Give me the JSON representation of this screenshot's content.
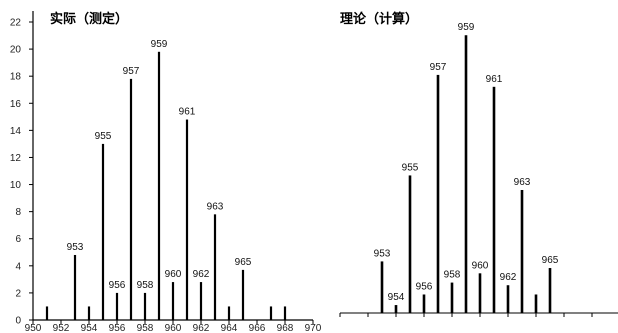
{
  "chart_data": [
    {
      "type": "bar",
      "title": "实际（测定）",
      "xlabel": "",
      "ylabel": "",
      "xlim": [
        950,
        970
      ],
      "ylim": [
        0,
        22
      ],
      "x_ticks": [
        950,
        952,
        954,
        956,
        958,
        960,
        962,
        964,
        966,
        968,
        970
      ],
      "y_ticks": [
        0,
        2,
        4,
        6,
        8,
        10,
        12,
        14,
        16,
        18,
        20,
        22
      ],
      "grid": false,
      "bar_color": "#000000",
      "points": [
        {
          "x": 951,
          "y": 1.0,
          "label": ""
        },
        {
          "x": 953,
          "y": 4.8,
          "label": "953"
        },
        {
          "x": 954,
          "y": 1.0,
          "label": ""
        },
        {
          "x": 955,
          "y": 13.0,
          "label": "955"
        },
        {
          "x": 956,
          "y": 2.0,
          "label": "956"
        },
        {
          "x": 957,
          "y": 17.8,
          "label": "957"
        },
        {
          "x": 958,
          "y": 2.0,
          "label": "958"
        },
        {
          "x": 959,
          "y": 19.8,
          "label": "959"
        },
        {
          "x": 960,
          "y": 2.8,
          "label": "960"
        },
        {
          "x": 961,
          "y": 14.8,
          "label": "961"
        },
        {
          "x": 962,
          "y": 2.8,
          "label": "962"
        },
        {
          "x": 963,
          "y": 7.8,
          "label": "963"
        },
        {
          "x": 964,
          "y": 1.0,
          "label": ""
        },
        {
          "x": 965,
          "y": 3.7,
          "label": "965"
        },
        {
          "x": 967,
          "y": 1.0,
          "label": ""
        },
        {
          "x": 968,
          "y": 1.0,
          "label": ""
        }
      ]
    },
    {
      "type": "bar",
      "title": "理论（计算）",
      "xlabel": "",
      "ylabel": "",
      "xlim": [
        950,
        970
      ],
      "ylim": [
        0,
        22
      ],
      "x_ticks": [
        950,
        952,
        954,
        956,
        958,
        960,
        962,
        964,
        966,
        968,
        970
      ],
      "grid": false,
      "bar_color": "#000000",
      "points": [
        {
          "x": 953,
          "y": 3.9,
          "label": "953"
        },
        {
          "x": 954,
          "y": 0.6,
          "label": "954"
        },
        {
          "x": 955,
          "y": 10.4,
          "label": "955"
        },
        {
          "x": 956,
          "y": 1.4,
          "label": "956"
        },
        {
          "x": 957,
          "y": 18.0,
          "label": "957"
        },
        {
          "x": 958,
          "y": 2.3,
          "label": "958"
        },
        {
          "x": 959,
          "y": 21.0,
          "label": "959"
        },
        {
          "x": 960,
          "y": 3.0,
          "label": "960"
        },
        {
          "x": 961,
          "y": 17.1,
          "label": "961"
        },
        {
          "x": 962,
          "y": 2.1,
          "label": "962"
        },
        {
          "x": 963,
          "y": 9.3,
          "label": "963"
        },
        {
          "x": 964,
          "y": 1.4,
          "label": ""
        },
        {
          "x": 965,
          "y": 3.4,
          "label": "965"
        }
      ]
    }
  ]
}
